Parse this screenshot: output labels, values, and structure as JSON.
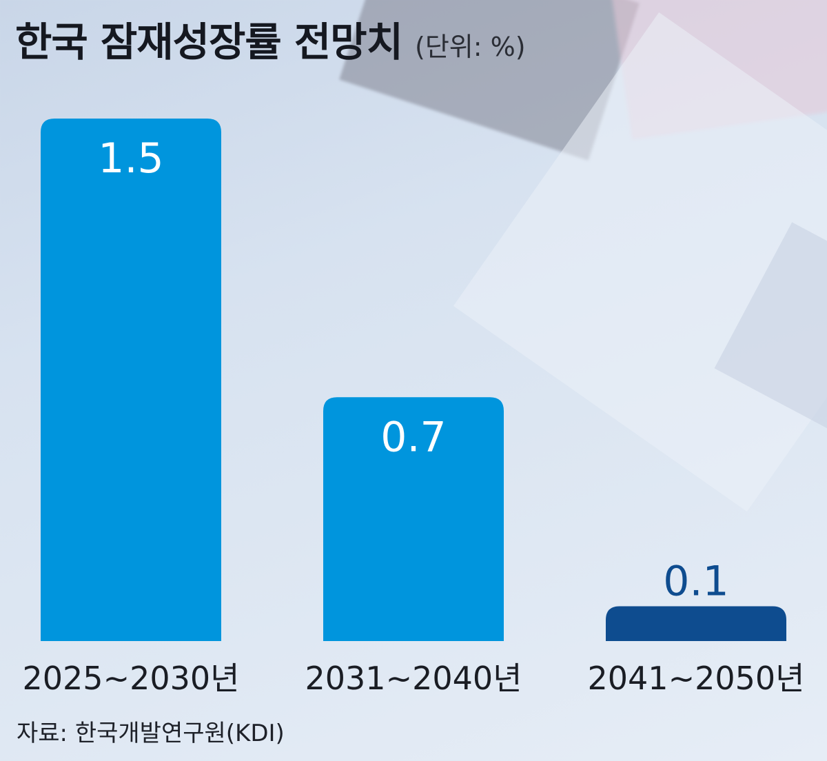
{
  "header": {
    "title": "한국 잠재성장률 전망치",
    "unit": "(단위: %)"
  },
  "chart_data": {
    "type": "bar",
    "categories": [
      "2025~2030년",
      "2031~2040년",
      "2041~2050년"
    ],
    "values": [
      1.5,
      0.7,
      0.1
    ],
    "value_labels": [
      "1.5",
      "0.7",
      "0.1"
    ],
    "bar_colors": [
      "#0095dd",
      "#0095dd",
      "#0e4c8f"
    ],
    "label_colors": [
      "#ffffff",
      "#ffffff",
      "#0e4c8f"
    ],
    "title": "한국 잠재성장률 전망치",
    "ylabel": "(단위: %)",
    "xlabel": "",
    "ylim": [
      0,
      1.5
    ],
    "grid": false
  },
  "footer": {
    "source": "자료: 한국개발연구원(KDI)"
  }
}
